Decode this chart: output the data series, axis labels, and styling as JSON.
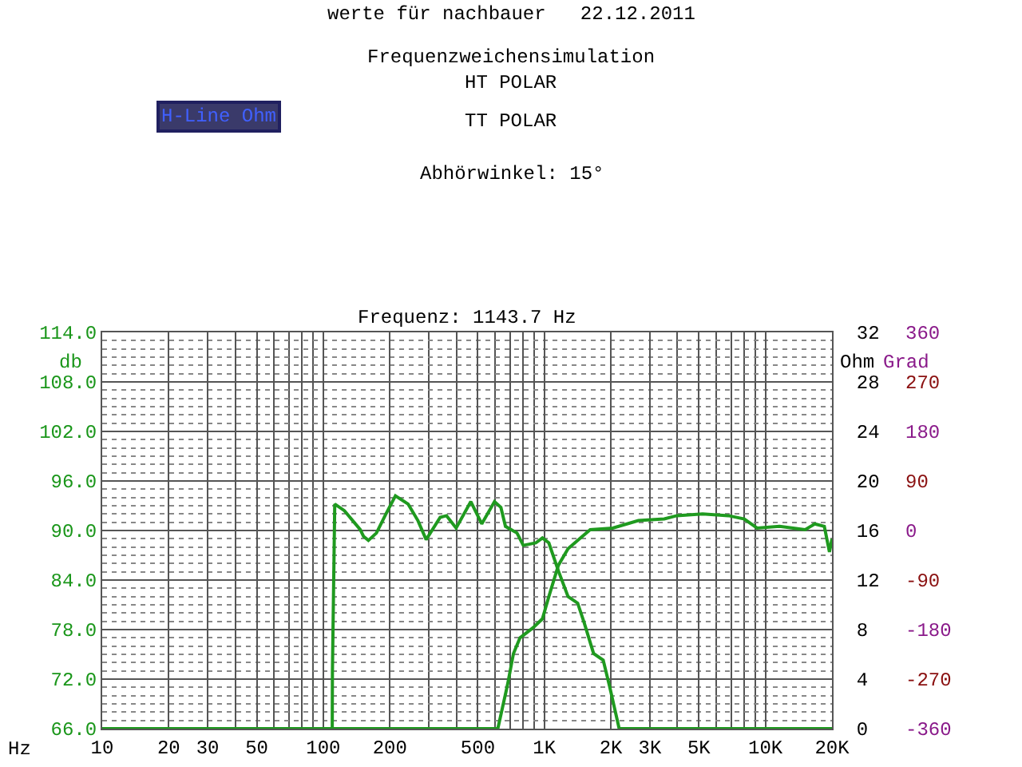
{
  "chart_data": {
    "type": "line",
    "title": "werte für nachbauer   22.12.2011",
    "subtitle": "Frequenz: 1143.7 Hz",
    "xlabel": "Hz",
    "ylabel": "db",
    "y2label": "Ohm",
    "y3label": "Grad",
    "annotations": [
      "Frequenzweichensimulation",
      "HT POLAR",
      "TT POLAR",
      "H-Line Ohm",
      "Abhörwinkel: 15°"
    ],
    "log": "x",
    "grid": true,
    "marker": "none",
    "line_style": "solid",
    "xlim": [
      10,
      20000
    ],
    "xticks": [
      {
        "value": 10,
        "label": "10"
      },
      {
        "value": 20,
        "label": "20"
      },
      {
        "value": 30,
        "label": "30"
      },
      {
        "value": 50,
        "label": "50"
      },
      {
        "value": 100,
        "label": "100"
      },
      {
        "value": 200,
        "label": "200"
      },
      {
        "value": 500,
        "label": "500"
      },
      {
        "value": 1000,
        "label": "1K"
      },
      {
        "value": 2000,
        "label": "2K"
      },
      {
        "value": 3000,
        "label": "3K"
      },
      {
        "value": 5000,
        "label": "5K"
      },
      {
        "value": 10000,
        "label": "10K"
      },
      {
        "value": 20000,
        "label": "20K"
      }
    ],
    "ylim": [
      66,
      114
    ],
    "yticks": [
      {
        "value": 66,
        "label": "66.0"
      },
      {
        "value": 72,
        "label": "72.0"
      },
      {
        "value": 78,
        "label": "78.0"
      },
      {
        "value": 84,
        "label": "84.0"
      },
      {
        "value": 90,
        "label": "90.0"
      },
      {
        "value": 96,
        "label": "96.0"
      },
      {
        "value": 102,
        "label": "102.0"
      },
      {
        "value": 108,
        "label": "108.0"
      },
      {
        "value": 114,
        "label": "114.0"
      }
    ],
    "y2lim": [
      0,
      32
    ],
    "y2ticks": [
      0,
      4,
      8,
      12,
      16,
      20,
      24,
      28,
      32
    ],
    "y3lim": [
      -360,
      360
    ],
    "y3ticks": [
      -360,
      -270,
      -180,
      -90,
      0,
      90,
      180,
      270,
      360
    ],
    "series": [
      {
        "color": "#1f9a1f",
        "x": [
          10,
          109.8,
          110,
          112.7,
          124.6,
          147,
          152,
          160,
          174,
          192,
          212,
          242,
          268,
          292,
          338,
          361,
          399,
          465,
          521,
          595,
          636,
          667,
          752,
          803,
          915,
          980,
          1048,
          1158,
          1280,
          1415,
          1511,
          1670,
          1846,
          1970,
          2180,
          20000
        ],
        "values": [
          66,
          66,
          72.8,
          93.2,
          92.4,
          90.1,
          89.3,
          88.8,
          89.7,
          92.0,
          94.2,
          93.2,
          91.2,
          88.9,
          91.6,
          91.8,
          90.3,
          93.5,
          90.8,
          93.5,
          92.8,
          90.5,
          89.7,
          88.2,
          88.5,
          89.1,
          88.5,
          85.1,
          82.0,
          81.2,
          78.9,
          75.1,
          74.3,
          71.2,
          66,
          66
        ]
      },
      {
        "color": "#1f9a1f",
        "x": [
          10,
          616,
          680,
          725,
          776,
          887,
          980,
          1048,
          1158,
          1280,
          1458,
          1612,
          2038,
          2664,
          3486,
          3977,
          5198,
          6795,
          8024,
          9170,
          11580,
          15130,
          16720,
          18470,
          19480,
          20000
        ],
        "values": [
          66,
          66,
          71.2,
          75.1,
          77.0,
          78.2,
          79.3,
          82.0,
          85.8,
          87.8,
          89.1,
          90.1,
          90.3,
          91.2,
          91.4,
          91.8,
          92.0,
          91.8,
          91.4,
          90.3,
          90.5,
          90.1,
          90.8,
          90.5,
          87.4,
          89.0
        ]
      }
    ]
  }
}
